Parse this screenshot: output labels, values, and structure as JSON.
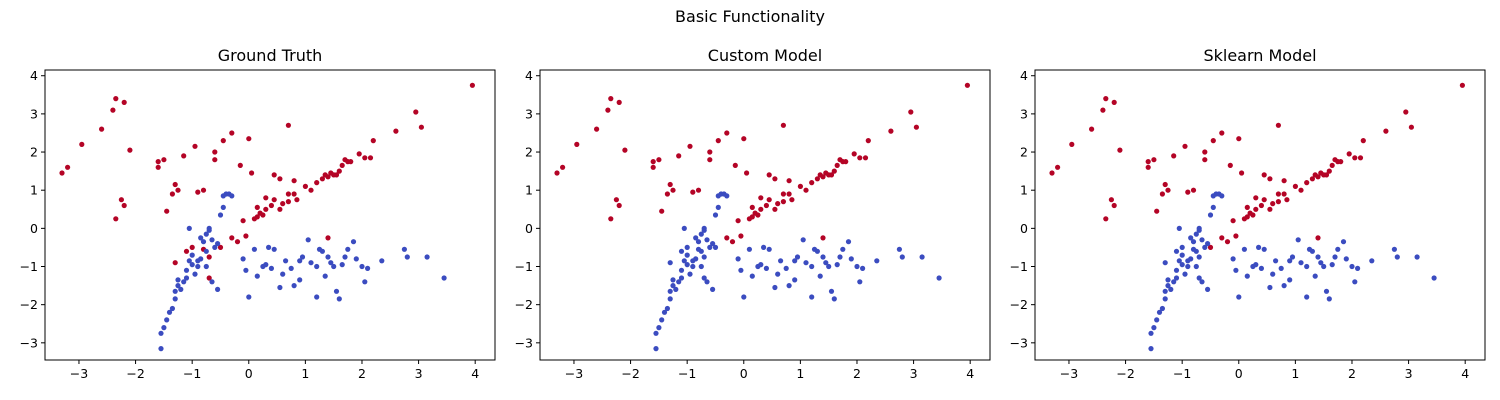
{
  "figure": {
    "suptitle": "Basic Functionality",
    "class_colors": {
      "0": "#3b4cc0",
      "1": "#b40426"
    }
  },
  "chart_data": [
    {
      "type": "scatter",
      "title": "Ground Truth",
      "xlabel": "",
      "ylabel": "",
      "xlim": [
        -3.6,
        4.35
      ],
      "ylim": [
        -3.45,
        4.15
      ],
      "xticks": [
        -3,
        -2,
        -1,
        0,
        1,
        2,
        3,
        4
      ],
      "yticks": [
        -3,
        -2,
        -1,
        0,
        1,
        2,
        3,
        4
      ],
      "grid": false,
      "differences": []
    },
    {
      "type": "scatter",
      "title": "Custom Model",
      "xlabel": "",
      "ylabel": "",
      "xlim": [
        -3.6,
        4.35
      ],
      "ylim": [
        -3.45,
        4.15
      ],
      "xticks": [
        -3,
        -2,
        -1,
        0,
        1,
        2,
        3,
        4
      ],
      "yticks": [
        -3,
        -2,
        -1,
        0,
        1,
        2,
        3,
        4
      ],
      "grid": false,
      "differences": [
        [
          -0.7,
          -1.3,
          0
        ],
        [
          -1.3,
          -0.9,
          0
        ],
        [
          -1.1,
          -0.6,
          0
        ],
        [
          -0.8,
          -0.55,
          0
        ],
        [
          -0.7,
          -0.75,
          0
        ],
        [
          -0.5,
          -0.5,
          0
        ],
        [
          -1.0,
          -0.5,
          0
        ],
        [
          -0.3,
          0.0,
          1
        ],
        [
          1.0,
          -0.3,
          1
        ]
      ]
    },
    {
      "type": "scatter",
      "title": "Sklearn Model",
      "xlabel": "",
      "ylabel": "",
      "xlim": [
        -3.6,
        4.35
      ],
      "ylim": [
        -3.45,
        4.15
      ],
      "xticks": [
        -3,
        -2,
        -1,
        0,
        1,
        2,
        3,
        4
      ],
      "yticks": [
        -3,
        -2,
        -1,
        0,
        1,
        2,
        3,
        4
      ],
      "grid": false,
      "differences": [
        [
          -0.7,
          -1.3,
          0
        ],
        [
          -1.3,
          -0.9,
          0
        ],
        [
          -1.1,
          -0.6,
          0
        ],
        [
          -0.8,
          -0.55,
          0
        ],
        [
          -0.7,
          -0.75,
          0
        ],
        [
          -1.0,
          -0.5,
          0
        ],
        [
          -0.3,
          0.0,
          1
        ],
        [
          1.0,
          -0.3,
          1
        ]
      ]
    }
  ],
  "points": [
    [
      -3.3,
      1.45,
      1
    ],
    [
      -3.2,
      1.6,
      1
    ],
    [
      -2.95,
      2.2,
      1
    ],
    [
      -2.6,
      2.6,
      1
    ],
    [
      -2.4,
      3.1,
      1
    ],
    [
      -2.35,
      3.4,
      1
    ],
    [
      -2.2,
      3.3,
      1
    ],
    [
      -2.1,
      2.05,
      1
    ],
    [
      -2.35,
      0.25,
      1
    ],
    [
      -2.25,
      0.75,
      1
    ],
    [
      -2.2,
      0.6,
      1
    ],
    [
      -1.6,
      1.6,
      1
    ],
    [
      -1.6,
      1.75,
      1
    ],
    [
      -1.5,
      1.8,
      1
    ],
    [
      -1.45,
      0.45,
      1
    ],
    [
      -1.35,
      0.9,
      1
    ],
    [
      -1.3,
      1.15,
      1
    ],
    [
      -1.25,
      1.0,
      1
    ],
    [
      -1.15,
      1.9,
      1
    ],
    [
      -0.95,
      2.15,
      1
    ],
    [
      -0.9,
      0.95,
      1
    ],
    [
      -0.8,
      1.0,
      1
    ],
    [
      -0.6,
      1.8,
      1
    ],
    [
      -0.6,
      2.0,
      1
    ],
    [
      -0.45,
      2.3,
      1
    ],
    [
      -0.3,
      2.5,
      1
    ],
    [
      -0.15,
      1.65,
      1
    ],
    [
      0.0,
      2.35,
      1
    ],
    [
      0.05,
      1.45,
      1
    ],
    [
      -0.1,
      0.2,
      1
    ],
    [
      0.1,
      0.25,
      1
    ],
    [
      0.15,
      0.3,
      1
    ],
    [
      0.2,
      0.4,
      1
    ],
    [
      0.25,
      0.35,
      1
    ],
    [
      0.3,
      0.5,
      1
    ],
    [
      0.15,
      0.55,
      1
    ],
    [
      0.3,
      0.8,
      1
    ],
    [
      0.4,
      0.6,
      1
    ],
    [
      0.45,
      0.75,
      1
    ],
    [
      0.55,
      0.5,
      1
    ],
    [
      0.6,
      0.65,
      1
    ],
    [
      0.7,
      0.7,
      1
    ],
    [
      0.8,
      0.9,
      1
    ],
    [
      0.7,
      0.9,
      1
    ],
    [
      0.85,
      0.75,
      1
    ],
    [
      0.45,
      1.4,
      1
    ],
    [
      0.55,
      1.3,
      1
    ],
    [
      0.7,
      2.7,
      1
    ],
    [
      0.8,
      1.25,
      1
    ],
    [
      1.0,
      1.1,
      1
    ],
    [
      1.1,
      1.0,
      1
    ],
    [
      1.2,
      1.2,
      1
    ],
    [
      1.3,
      1.3,
      1
    ],
    [
      1.35,
      1.4,
      1
    ],
    [
      1.4,
      1.35,
      1
    ],
    [
      1.45,
      1.45,
      1
    ],
    [
      1.5,
      1.4,
      1
    ],
    [
      1.55,
      1.4,
      1
    ],
    [
      1.6,
      1.5,
      1
    ],
    [
      1.65,
      1.65,
      1
    ],
    [
      1.7,
      1.8,
      1
    ],
    [
      1.75,
      1.75,
      1
    ],
    [
      1.8,
      1.75,
      1
    ],
    [
      1.95,
      1.95,
      1
    ],
    [
      2.05,
      1.85,
      1
    ],
    [
      2.15,
      1.85,
      1
    ],
    [
      2.2,
      2.3,
      1
    ],
    [
      2.6,
      2.55,
      1
    ],
    [
      2.95,
      3.05,
      1
    ],
    [
      3.05,
      2.65,
      1
    ],
    [
      3.95,
      3.75,
      1
    ],
    [
      1.4,
      -0.25,
      1
    ],
    [
      -0.05,
      -0.2,
      1
    ],
    [
      -0.2,
      -0.35,
      1
    ],
    [
      -0.3,
      -0.25,
      1
    ],
    [
      -0.7,
      -1.3,
      1
    ],
    [
      -1.3,
      -0.9,
      1
    ],
    [
      -1.1,
      -0.6,
      1
    ],
    [
      -0.8,
      -0.55,
      1
    ],
    [
      -0.7,
      -0.75,
      1
    ],
    [
      -0.5,
      -0.5,
      1
    ],
    [
      -1.0,
      -0.5,
      1
    ],
    [
      -1.55,
      -3.15,
      0
    ],
    [
      -1.55,
      -2.75,
      0
    ],
    [
      -1.5,
      -2.6,
      0
    ],
    [
      -1.45,
      -2.4,
      0
    ],
    [
      -1.4,
      -2.2,
      0
    ],
    [
      -1.35,
      -2.1,
      0
    ],
    [
      -1.3,
      -1.85,
      0
    ],
    [
      -1.3,
      -1.65,
      0
    ],
    [
      -1.25,
      -1.5,
      0
    ],
    [
      -1.25,
      -1.35,
      0
    ],
    [
      -1.2,
      -1.6,
      0
    ],
    [
      -1.15,
      -1.4,
      0
    ],
    [
      -1.1,
      -1.3,
      0
    ],
    [
      -1.1,
      -1.1,
      0
    ],
    [
      -1.05,
      -0.85,
      0
    ],
    [
      -1.0,
      -0.95,
      0
    ],
    [
      -1.0,
      -0.7,
      0
    ],
    [
      -0.95,
      -1.2,
      0
    ],
    [
      -0.9,
      -1.0,
      0
    ],
    [
      -0.85,
      -0.8,
      0
    ],
    [
      -0.8,
      -0.35,
      0
    ],
    [
      -0.75,
      -0.15,
      0
    ],
    [
      -0.7,
      -0.05,
      0
    ],
    [
      -0.7,
      0.0,
      0
    ],
    [
      -0.65,
      -0.3,
      0
    ],
    [
      -0.6,
      -0.5,
      0
    ],
    [
      -0.55,
      -0.4,
      0
    ],
    [
      -0.5,
      0.35,
      0
    ],
    [
      -0.45,
      0.55,
      0
    ],
    [
      -0.45,
      0.85,
      0
    ],
    [
      -0.4,
      0.9,
      0
    ],
    [
      -0.35,
      0.9,
      0
    ],
    [
      -0.3,
      0.85,
      0
    ],
    [
      -0.55,
      -1.6,
      0
    ],
    [
      -0.65,
      -1.4,
      0
    ],
    [
      -0.75,
      -1.0,
      0
    ],
    [
      -0.9,
      -0.85,
      0
    ],
    [
      -1.05,
      0.0,
      0
    ],
    [
      -0.85,
      -0.25,
      0
    ],
    [
      -0.75,
      -0.6,
      0
    ],
    [
      -0.1,
      -0.8,
      0
    ],
    [
      -0.05,
      -1.1,
      0
    ],
    [
      0.1,
      -0.55,
      0
    ],
    [
      0.15,
      -1.25,
      0
    ],
    [
      0.0,
      -1.8,
      0
    ],
    [
      0.25,
      -1.0,
      0
    ],
    [
      0.3,
      -0.95,
      0
    ],
    [
      0.35,
      -0.5,
      0
    ],
    [
      0.4,
      -1.05,
      0
    ],
    [
      0.45,
      -0.55,
      0
    ],
    [
      0.55,
      -1.55,
      0
    ],
    [
      0.6,
      -1.2,
      0
    ],
    [
      0.65,
      -0.85,
      0
    ],
    [
      0.75,
      -1.05,
      0
    ],
    [
      0.8,
      -1.5,
      0
    ],
    [
      0.9,
      -0.85,
      0
    ],
    [
      0.95,
      -0.75,
      0
    ],
    [
      1.05,
      -0.3,
      0
    ],
    [
      1.1,
      -0.9,
      0
    ],
    [
      1.2,
      -1.0,
      0
    ],
    [
      1.25,
      -0.55,
      0
    ],
    [
      1.3,
      -0.6,
      0
    ],
    [
      1.35,
      -1.25,
      0
    ],
    [
      1.4,
      -0.75,
      0
    ],
    [
      1.45,
      -0.9,
      0
    ],
    [
      1.5,
      -1.0,
      0
    ],
    [
      1.55,
      -1.65,
      0
    ],
    [
      1.6,
      -1.85,
      0
    ],
    [
      1.65,
      -0.95,
      0
    ],
    [
      1.7,
      -0.75,
      0
    ],
    [
      1.75,
      -0.55,
      0
    ],
    [
      1.85,
      -0.35,
      0
    ],
    [
      1.9,
      -0.8,
      0
    ],
    [
      2.0,
      -1.0,
      0
    ],
    [
      2.05,
      -1.4,
      0
    ],
    [
      2.1,
      -1.05,
      0
    ],
    [
      2.35,
      -0.85,
      0
    ],
    [
      2.75,
      -0.55,
      0
    ],
    [
      2.8,
      -0.75,
      0
    ],
    [
      3.15,
      -0.75,
      0
    ],
    [
      3.45,
      -1.3,
      0
    ],
    [
      1.2,
      -1.8,
      0
    ],
    [
      0.9,
      -1.35,
      0
    ]
  ]
}
